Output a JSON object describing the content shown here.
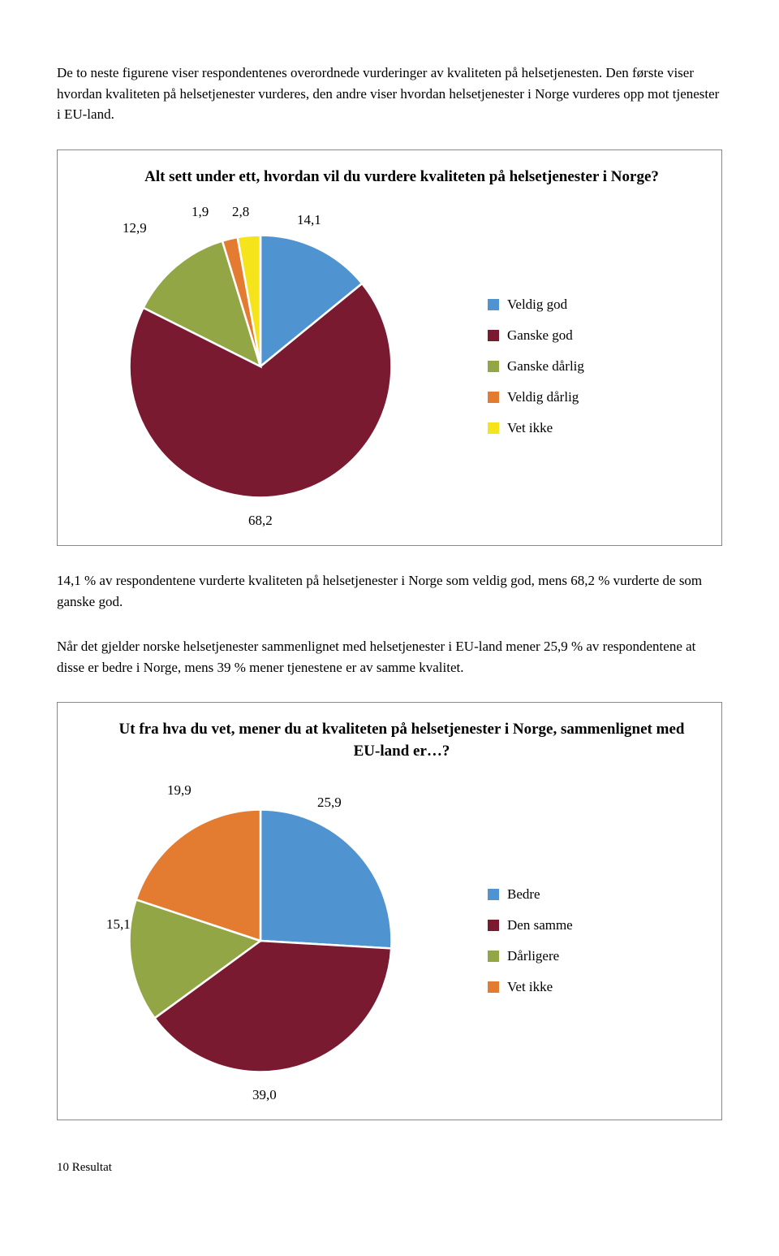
{
  "intro_p1": "De to neste figurene viser respondentenes overordnede vurderinger av kvaliteten på helsetjenesten. Den første viser hvordan kvaliteten på helsetjenester vurderes, den andre viser hvordan helsetjenester i Norge vurderes opp mot tjenester i EU-land.",
  "chart1": {
    "title": "Alt sett under ett, hvordan vil du vurdere kvaliteten på helsetjenester i Norge?",
    "slices": [
      {
        "label": "Veldig god",
        "value": 14.1,
        "color": "#4f93d0"
      },
      {
        "label": "Ganske god",
        "value": 68.2,
        "color": "#7a1a30"
      },
      {
        "label": "Ganske dårlig",
        "value": 12.9,
        "color": "#93a645"
      },
      {
        "label": "Veldig dårlig",
        "value": 1.9,
        "color": "#e37b30"
      },
      {
        "label": "Vet ikke",
        "value": 2.8,
        "color": "#f5e41c"
      }
    ],
    "value_labels": {
      "v0": "14,1",
      "v1": "68,2",
      "v2": "12,9",
      "v3": "1,9",
      "v4": "2,8"
    },
    "stroke": "#ffffff"
  },
  "mid_p1": "14,1 % av respondentene vurderte kvaliteten på helsetjenester i Norge som veldig god, mens 68,2 % vurderte de som ganske god.",
  "mid_p2": "Når det gjelder norske helsetjenester sammenlignet med helsetjenester i EU-land mener 25,9 % av respondentene at disse er bedre i Norge, mens 39 % mener tjenestene er av samme kvalitet.",
  "chart2": {
    "title": "Ut fra hva du vet, mener du at kvaliteten på helsetjenester i Norge, sammenlignet med EU-land er…?",
    "slices": [
      {
        "label": "Bedre",
        "value": 25.9,
        "color": "#4f93d0"
      },
      {
        "label": "Den samme",
        "value": 39.0,
        "color": "#7a1a30"
      },
      {
        "label": "Dårligere",
        "value": 15.1,
        "color": "#93a645"
      },
      {
        "label": "Vet ikke",
        "value": 19.9,
        "color": "#e37b30"
      }
    ],
    "value_labels": {
      "v0": "25,9",
      "v1": "39,0",
      "v2": "15,1",
      "v3": "19,9"
    },
    "stroke": "#ffffff"
  },
  "footer": "10 Resultat"
}
